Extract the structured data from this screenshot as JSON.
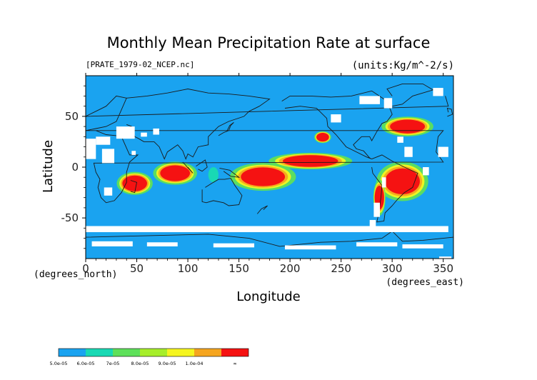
{
  "chart_data": {
    "type": "heatmap",
    "title": "Monthly Mean Precipitation Rate at surface",
    "file_label": "[PRATE_1979-02_NCEP.nc]",
    "units_label": "(units:Kg/m^-2/s)",
    "xlabel": "Longitude",
    "ylabel": "Latitude",
    "x_unit_label": "(degrees_east)",
    "y_unit_label": "(degrees_north)",
    "xlim": [
      0,
      360
    ],
    "ylim": [
      -90,
      90
    ],
    "x_ticks": [
      0,
      50,
      100,
      150,
      200,
      250,
      300,
      350
    ],
    "y_ticks": [
      50,
      0,
      -50
    ],
    "colorbar": {
      "labels": [
        "5.0e-05",
        "6.0e-05",
        "7e-05",
        "8.0e-05",
        "9.0e-05",
        "1.0e-04",
        "∞"
      ],
      "colors": [
        "#1aa3f0",
        "#19d9b4",
        "#5ee05a",
        "#a6ee2a",
        "#f5f51f",
        "#f5a51f",
        "#f51212"
      ]
    },
    "background_color": "#1aa3f0",
    "missing_color": "#ffffff",
    "regions": [
      {
        "level": 1,
        "x": [
          120,
          130
        ],
        "y": [
          -15,
          0
        ]
      },
      {
        "level": 6,
        "x": [
          154,
          193
        ],
        "y": [
          -17,
          -2
        ]
      },
      {
        "level": 6,
        "x": [
          195,
          245
        ],
        "y": [
          2,
          10
        ]
      },
      {
        "level": 6,
        "x": [
          75,
          100
        ],
        "y": [
          -12,
          0
        ]
      },
      {
        "level": 6,
        "x": [
          38,
          58
        ],
        "y": [
          -22,
          -10
        ]
      },
      {
        "level": 6,
        "x": [
          295,
          325
        ],
        "y": [
          -25,
          -3
        ]
      },
      {
        "level": 6,
        "x": [
          300,
          330
        ],
        "y": [
          35,
          45
        ]
      },
      {
        "level": 6,
        "x": [
          285,
          290
        ],
        "y": [
          -40,
          -20
        ]
      },
      {
        "level": 6,
        "x": [
          228,
          236
        ],
        "y": [
          27,
          32
        ]
      }
    ]
  }
}
